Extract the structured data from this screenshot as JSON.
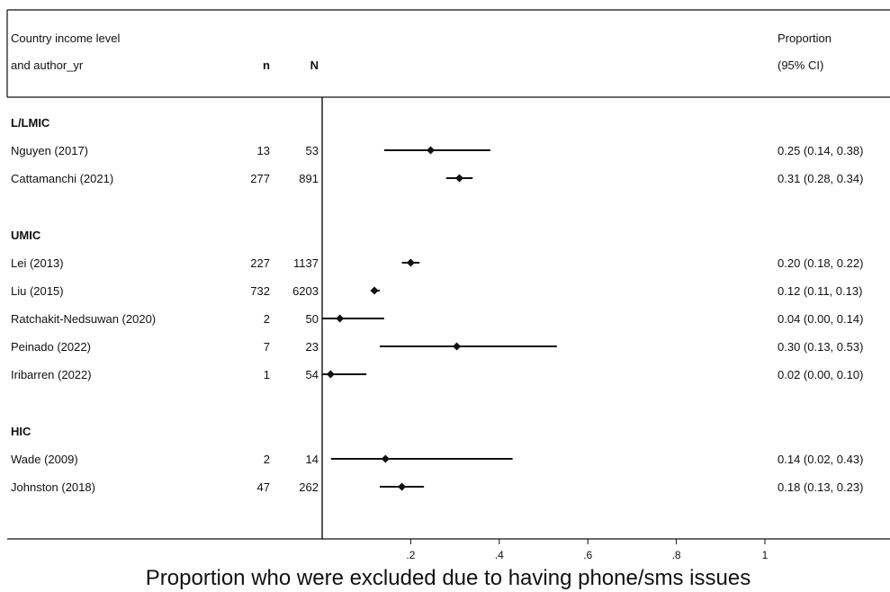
{
  "chart_data": {
    "type": "forest",
    "header": {
      "col1_line1": "Country income level",
      "col1_line2": "and author_yr",
      "n": "n",
      "N": "N",
      "est_line1": "Proportion",
      "est_line2": "(95% CI)"
    },
    "groups": [
      {
        "label": "L/LMIC",
        "studies": [
          {
            "label": "Nguyen (2017)",
            "n": "13",
            "N": "53",
            "est": 0.245,
            "lo": 0.14,
            "hi": 0.38,
            "text": "0.25 (0.14, 0.38)"
          },
          {
            "label": "Cattamanchi (2021)",
            "n": "277",
            "N": "891",
            "est": 0.31,
            "lo": 0.28,
            "hi": 0.34,
            "text": "0.31 (0.28, 0.34)"
          }
        ]
      },
      {
        "label": "UMIC",
        "studies": [
          {
            "label": "Lei (2013)",
            "n": "227",
            "N": "1137",
            "est": 0.2,
            "lo": 0.18,
            "hi": 0.22,
            "text": "0.20 (0.18, 0.22)"
          },
          {
            "label": "Liu (2015)",
            "n": "732",
            "N": "6203",
            "est": 0.118,
            "lo": 0.11,
            "hi": 0.13,
            "text": "0.12 (0.11, 0.13)"
          },
          {
            "label": "Ratchakit-Nedsuwan (2020)",
            "n": "2",
            "N": "50",
            "est": 0.04,
            "lo": 0.0,
            "hi": 0.14,
            "text": "0.04 (0.00, 0.14)"
          },
          {
            "label": "Peinado (2022)",
            "n": "7",
            "N": "23",
            "est": 0.304,
            "lo": 0.13,
            "hi": 0.53,
            "text": "0.30 (0.13, 0.53)"
          },
          {
            "label": "Iribarren (2022)",
            "n": "1",
            "N": "54",
            "est": 0.019,
            "lo": 0.0,
            "hi": 0.1,
            "text": "0.02 (0.00, 0.10)"
          }
        ]
      },
      {
        "label": "HIC",
        "studies": [
          {
            "label": "Wade (2009)",
            "n": "2",
            "N": "14",
            "est": 0.143,
            "lo": 0.02,
            "hi": 0.43,
            "text": "0.14 (0.02, 0.43)"
          },
          {
            "label": "Johnston (2018)",
            "n": "47",
            "N": "262",
            "est": 0.18,
            "lo": 0.13,
            "hi": 0.23,
            "text": "0.18 (0.13, 0.23)"
          }
        ]
      }
    ],
    "x_ticks": [
      {
        "value": 0.2,
        "label": ".2"
      },
      {
        "value": 0.4,
        "label": ".4"
      },
      {
        "value": 0.6,
        "label": ".6"
      },
      {
        "value": 0.8,
        "label": ".8"
      },
      {
        "value": 1.0,
        "label": "1"
      }
    ],
    "xlim": [
      0,
      1
    ],
    "xlabel": "Proportion who were excluded due to having phone/sms issues",
    "reference_line": 0
  }
}
